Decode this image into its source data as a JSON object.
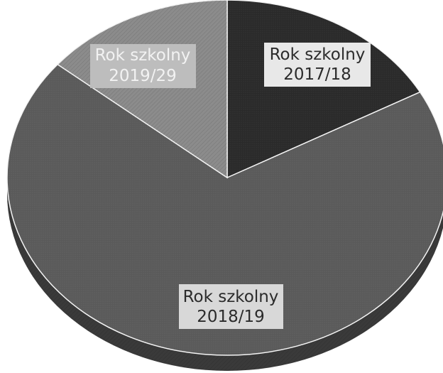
{
  "chart_data": {
    "type": "pie",
    "style": "3d, grayscale halftone",
    "labels": [
      {
        "key": "s2017",
        "line1": "Rok szkolny",
        "line2": "2017/18"
      },
      {
        "key": "s2018",
        "line1": "Rok szkolny",
        "line2": "2018/19"
      },
      {
        "key": "s2019",
        "line1": "Rok szkolny",
        "line2": "2019/29"
      }
    ],
    "series": [
      {
        "values": [
          17,
          69,
          14
        ],
        "colors": [
          "#2a2a2a",
          "#5a5a5a",
          "#8c8c8c"
        ]
      }
    ],
    "legend": "none"
  }
}
